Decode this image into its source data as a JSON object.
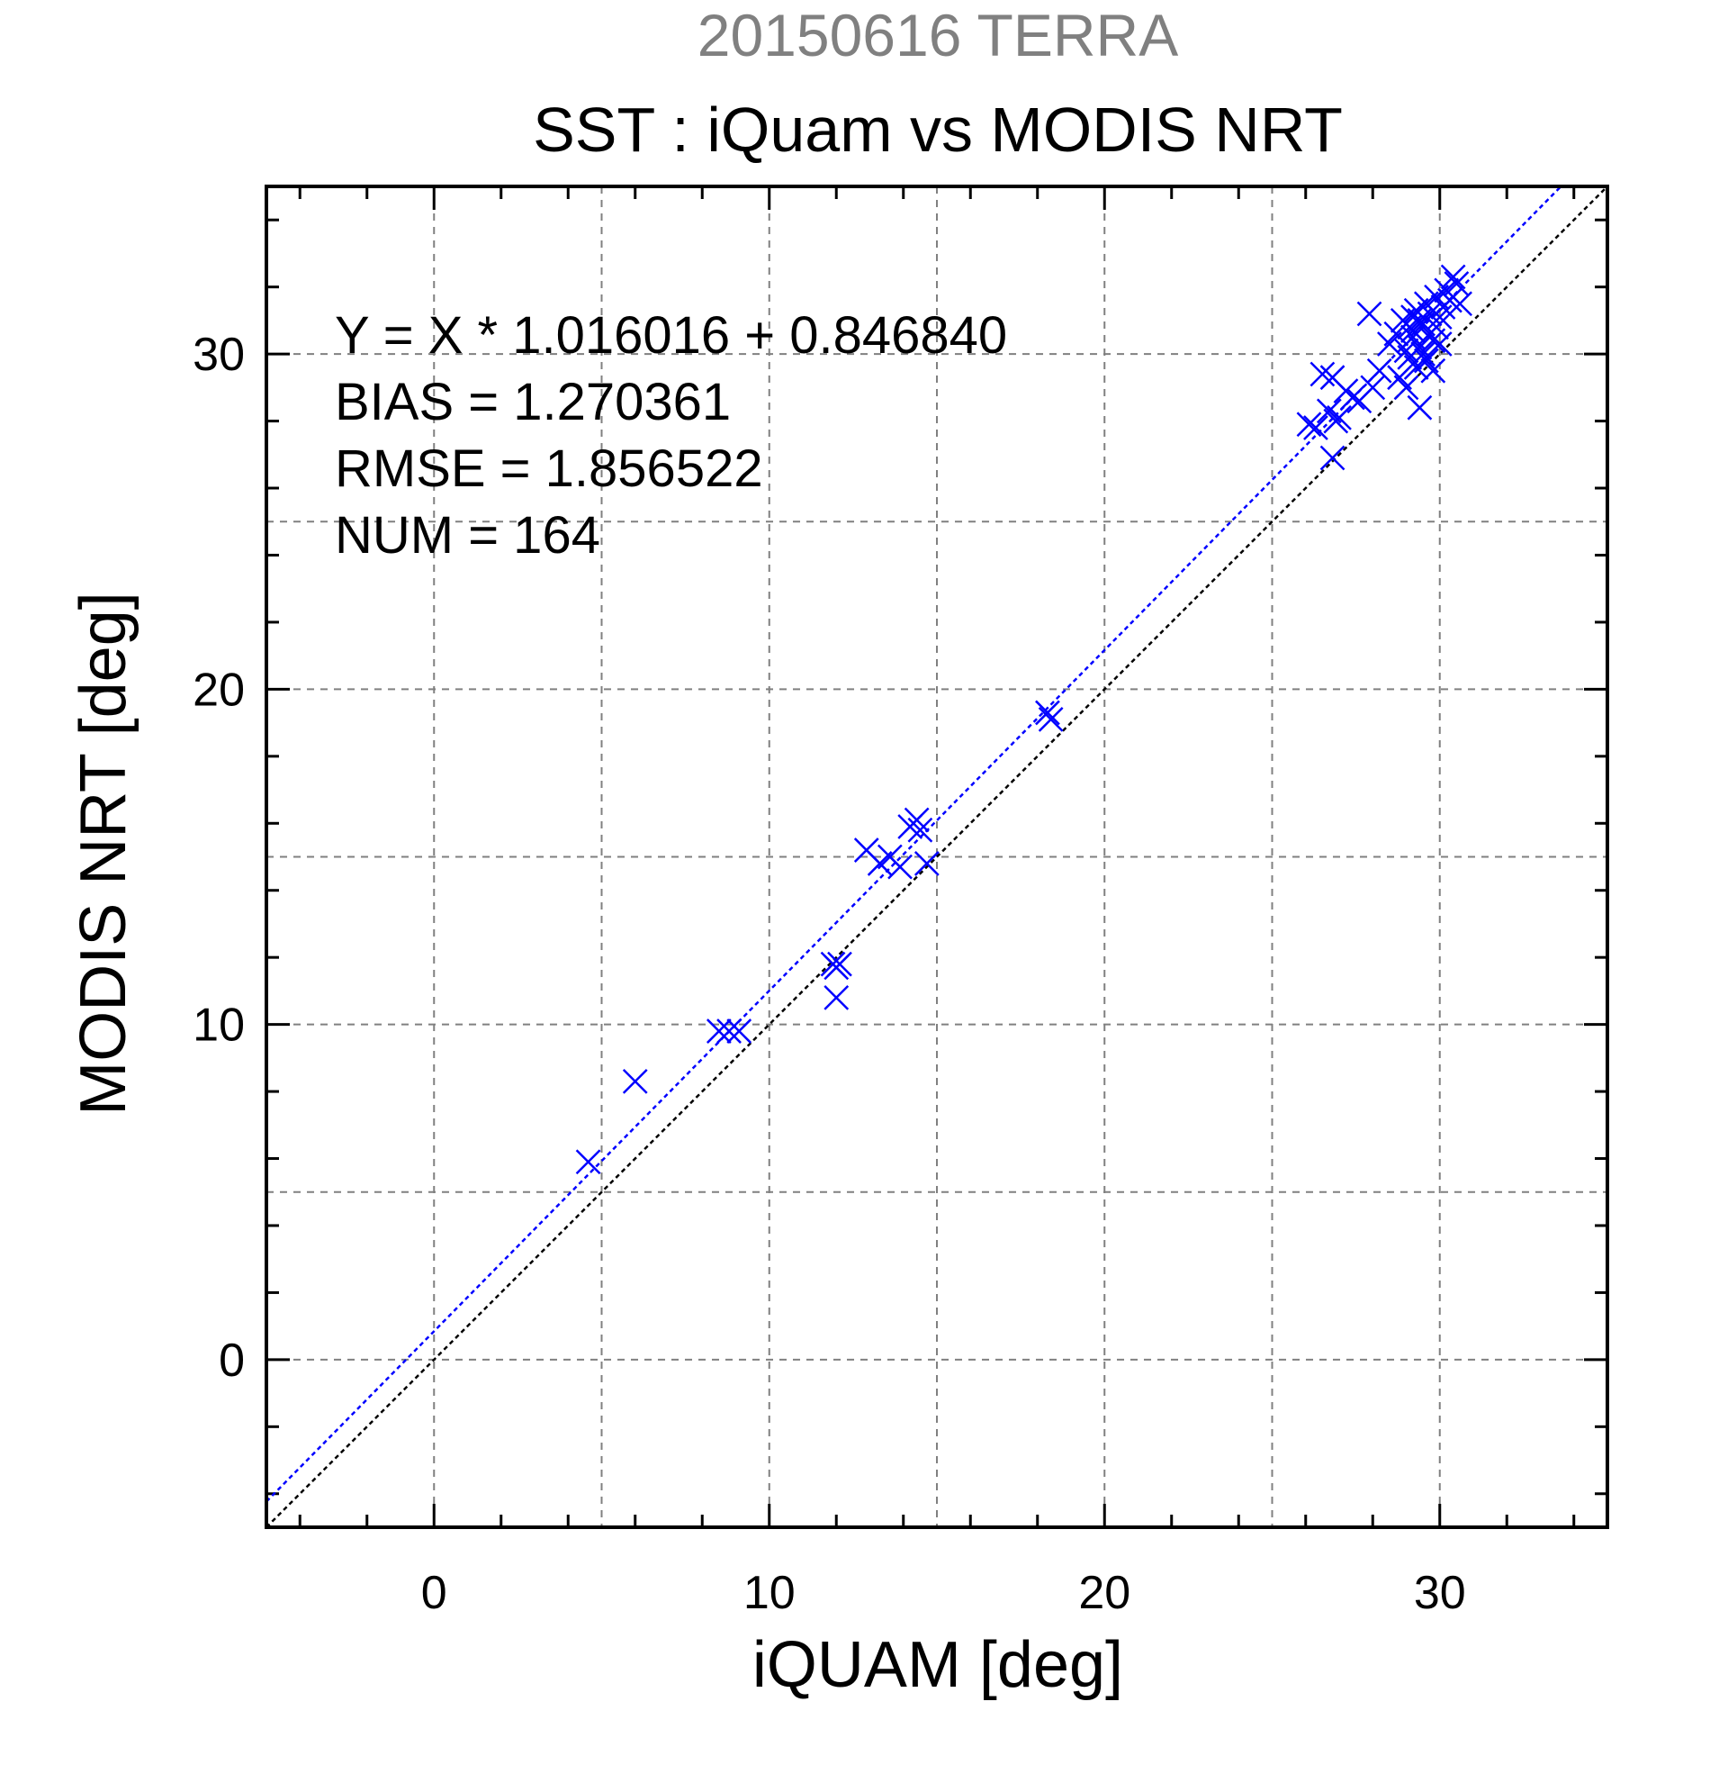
{
  "colors": {
    "series": "#0000ff",
    "identity": "#000000",
    "grid": "#808080",
    "title1": "#808080"
  },
  "chart_data": {
    "type": "scatter",
    "title": "20150616 TERRA",
    "subtitle": "SST : iQuam vs MODIS NRT",
    "xlabel": "iQUAM [deg]",
    "ylabel": "MODIS NRT [deg]",
    "xlim": [
      -5,
      35
    ],
    "ylim": [
      -5,
      35
    ],
    "grid": true,
    "xticks": [
      0,
      10,
      20,
      30
    ],
    "yticks": [
      0,
      10,
      20,
      30
    ],
    "xtick_labels": [
      "0",
      "10",
      "20",
      "30"
    ],
    "ytick_labels": [
      "0",
      "10",
      "20",
      "30"
    ],
    "marker": "x",
    "annotations": [
      "Y = X * 1.016016 + 0.846840",
      "BIAS = 1.270361",
      "RMSE = 1.856522",
      "NUM = 164"
    ],
    "fit_line": {
      "slope": 1.016016,
      "intercept": 0.84684
    },
    "identity_line": {
      "slope": 1,
      "intercept": 0
    },
    "points": [
      [
        4.6,
        5.9
      ],
      [
        6.0,
        8.3
      ],
      [
        8.5,
        9.8
      ],
      [
        8.8,
        9.8
      ],
      [
        9.1,
        9.8
      ],
      [
        12.0,
        10.8
      ],
      [
        11.9,
        11.8
      ],
      [
        12.1,
        11.8
      ],
      [
        12.0,
        11.7
      ],
      [
        12.9,
        15.2
      ],
      [
        13.3,
        14.8
      ],
      [
        13.6,
        15.0
      ],
      [
        13.9,
        14.7
      ],
      [
        14.2,
        15.9
      ],
      [
        14.4,
        16.1
      ],
      [
        14.5,
        15.8
      ],
      [
        14.7,
        14.8
      ],
      [
        18.3,
        19.3
      ],
      [
        18.4,
        19.1
      ],
      [
        26.1,
        27.9
      ],
      [
        26.3,
        27.8
      ],
      [
        26.5,
        29.4
      ],
      [
        26.8,
        29.3
      ],
      [
        26.7,
        28.3
      ],
      [
        26.9,
        28.0
      ],
      [
        27.0,
        28.1
      ],
      [
        26.8,
        26.9
      ],
      [
        27.2,
        28.9
      ],
      [
        27.4,
        28.7
      ],
      [
        27.6,
        28.6
      ],
      [
        27.9,
        31.2
      ],
      [
        28.0,
        29.0
      ],
      [
        28.2,
        29.5
      ],
      [
        28.5,
        30.3
      ],
      [
        28.7,
        30.6
      ],
      [
        28.8,
        29.3
      ],
      [
        28.9,
        31.0
      ],
      [
        29.0,
        30.1
      ],
      [
        29.0,
        29.0
      ],
      [
        29.1,
        30.8
      ],
      [
        29.1,
        29.9
      ],
      [
        29.2,
        31.1
      ],
      [
        29.2,
        30.5
      ],
      [
        29.3,
        29.6
      ],
      [
        29.3,
        31.3
      ],
      [
        29.4,
        30.2
      ],
      [
        29.4,
        28.4
      ],
      [
        29.5,
        30.9
      ],
      [
        29.5,
        30.0
      ],
      [
        29.6,
        31.5
      ],
      [
        29.6,
        29.8
      ],
      [
        29.7,
        30.6
      ],
      [
        29.7,
        31.2
      ],
      [
        29.8,
        29.5
      ],
      [
        29.8,
        30.4
      ],
      [
        29.9,
        31.7
      ],
      [
        29.9,
        30.8
      ],
      [
        30.0,
        31.1
      ],
      [
        30.0,
        30.3
      ],
      [
        30.1,
        31.4
      ],
      [
        30.2,
        31.9
      ],
      [
        30.3,
        31.6
      ],
      [
        30.4,
        32.3
      ],
      [
        30.5,
        32.1
      ],
      [
        30.6,
        31.5
      ],
      [
        29.2,
        30.7
      ],
      [
        29.4,
        31.0
      ]
    ]
  }
}
